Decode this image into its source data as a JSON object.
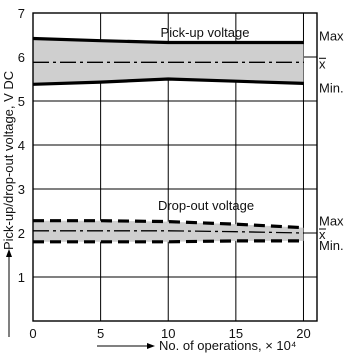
{
  "chart_data": {
    "type": "line",
    "title": "",
    "xlabel": "No. of operations, × 10⁴",
    "ylabel": "Pick-up/drop-out voltage, V DC",
    "xlim": [
      0,
      21
    ],
    "ylim": [
      0,
      7
    ],
    "x_ticks": [
      "0",
      "5",
      "10",
      "15",
      "20"
    ],
    "y_ticks": [
      "1",
      "2",
      "3",
      "4",
      "5",
      "6",
      "7"
    ],
    "grid": true,
    "series": [
      {
        "name": "Pick-up voltage",
        "x": [
          0,
          5,
          10,
          15,
          20
        ],
        "max": [
          6.42,
          6.37,
          6.33,
          6.33,
          6.33
        ],
        "mean": [
          5.88,
          5.88,
          5.88,
          5.88,
          5.88
        ],
        "min": [
          5.38,
          5.43,
          5.5,
          5.45,
          5.4
        ]
      },
      {
        "name": "Drop-out voltage",
        "x": [
          0,
          5,
          10,
          15,
          20
        ],
        "max": [
          2.28,
          2.28,
          2.26,
          2.2,
          2.12
        ],
        "mean": [
          2.05,
          2.05,
          2.05,
          2.03,
          2.0
        ],
        "min": [
          1.8,
          1.8,
          1.8,
          1.82,
          1.82
        ]
      }
    ],
    "side_labels": {
      "max": "Max",
      "mean": "x",
      "min": "Min."
    },
    "colors": {
      "band": "#cfcfcf",
      "line": "#000000",
      "grid": "#000000"
    }
  }
}
